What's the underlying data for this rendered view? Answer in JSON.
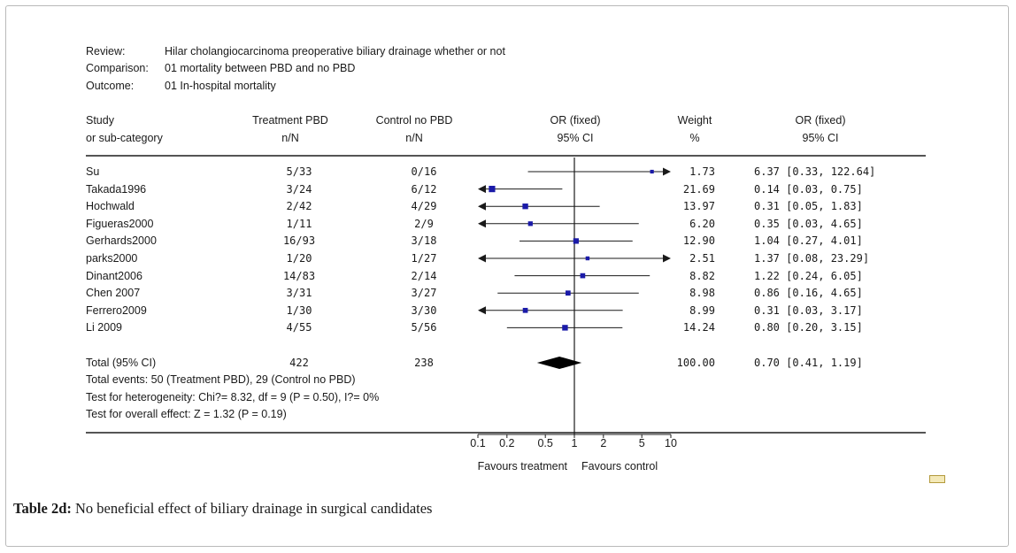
{
  "meta": {
    "review_label": "Review:",
    "review_value": "Hilar cholangiocarcinoma preoperative biliary drainage whether or not",
    "comparison_label": "Comparison:",
    "comparison_value": "01 mortality  between PBD  and no PBD",
    "outcome_label": "Outcome:",
    "outcome_value": "01 In-hospital mortality"
  },
  "headers": {
    "study": [
      "Study",
      "or sub-category"
    ],
    "treatment": [
      "Treatment  PBD",
      "n/N"
    ],
    "control": [
      "Control no PBD",
      "n/N"
    ],
    "or_plot": [
      "OR (fixed)",
      "95% CI"
    ],
    "weight": [
      "Weight",
      "%"
    ],
    "or_text": [
      "OR (fixed)",
      "95% CI"
    ]
  },
  "chart_data": {
    "type": "forest",
    "x_scale": "log",
    "xlim": [
      0.1,
      10
    ],
    "ticks": [
      0.1,
      0.2,
      0.5,
      1,
      2,
      5,
      10
    ],
    "tick_labels": [
      "0.1",
      "0.2",
      "0.5",
      "1",
      "2",
      "5",
      "10"
    ],
    "xlabel_left": "Favours treatment",
    "xlabel_right": "Favours control",
    "studies": [
      {
        "name": "Su",
        "treatment": "5/33",
        "control": "0/16",
        "weight": "1.73",
        "or_text": "6.37 [0.33, 122.64]",
        "or": 6.37,
        "lo": 0.33,
        "hi": 122.64
      },
      {
        "name": "Takada1996",
        "treatment": "3/24",
        "control": "6/12",
        "weight": "21.69",
        "or_text": "0.14 [0.03, 0.75]",
        "or": 0.14,
        "lo": 0.03,
        "hi": 0.75
      },
      {
        "name": "Hochwald",
        "treatment": "2/42",
        "control": "4/29",
        "weight": "13.97",
        "or_text": "0.31 [0.05, 1.83]",
        "or": 0.31,
        "lo": 0.05,
        "hi": 1.83
      },
      {
        "name": "Figueras2000",
        "treatment": "1/11",
        "control": "2/9",
        "weight": "6.20",
        "or_text": "0.35 [0.03, 4.65]",
        "or": 0.35,
        "lo": 0.03,
        "hi": 4.65
      },
      {
        "name": "Gerhards2000",
        "treatment": "16/93",
        "control": "3/18",
        "weight": "12.90",
        "or_text": "1.04 [0.27, 4.01]",
        "or": 1.04,
        "lo": 0.27,
        "hi": 4.01
      },
      {
        "name": "parks2000",
        "treatment": "1/20",
        "control": "1/27",
        "weight": "2.51",
        "or_text": "1.37 [0.08, 23.29]",
        "or": 1.37,
        "lo": 0.08,
        "hi": 23.29
      },
      {
        "name": "Dinant2006",
        "treatment": "14/83",
        "control": "2/14",
        "weight": "8.82",
        "or_text": "1.22 [0.24, 6.05]",
        "or": 1.22,
        "lo": 0.24,
        "hi": 6.05
      },
      {
        "name": "Chen 2007",
        "treatment": "3/31",
        "control": "3/27",
        "weight": "8.98",
        "or_text": "0.86 [0.16, 4.65]",
        "or": 0.86,
        "lo": 0.16,
        "hi": 4.65
      },
      {
        "name": "Ferrero2009",
        "treatment": "1/30",
        "control": "3/30",
        "weight": "8.99",
        "or_text": "0.31 [0.03, 3.17]",
        "or": 0.31,
        "lo": 0.03,
        "hi": 3.17
      },
      {
        "name": "Li 2009",
        "treatment": "4/55",
        "control": "5/56",
        "weight": "14.24",
        "or_text": "0.80 [0.20, 3.15]",
        "or": 0.8,
        "lo": 0.2,
        "hi": 3.15
      }
    ],
    "total": {
      "name": "Total (95% CI)",
      "treatment": "422",
      "control": "238",
      "weight": "100.00",
      "or_text": "0.70 [0.41, 1.19]",
      "or": 0.7,
      "lo": 0.41,
      "hi": 1.19
    },
    "notes": [
      "Total events: 50 (Treatment  PBD), 29 (Control no PBD)",
      "Test for heterogeneity: Chi?= 8.32, df = 9 (P = 0.50), I?= 0%",
      "Test for overall effect: Z = 1.32 (P = 0.19)"
    ],
    "colors": {
      "marker": "#1a1aa8",
      "line": "#1a1a1a"
    }
  },
  "caption": {
    "label": "Table 2d:",
    "text": "No beneficial effect of biliary drainage in surgical candidates"
  }
}
